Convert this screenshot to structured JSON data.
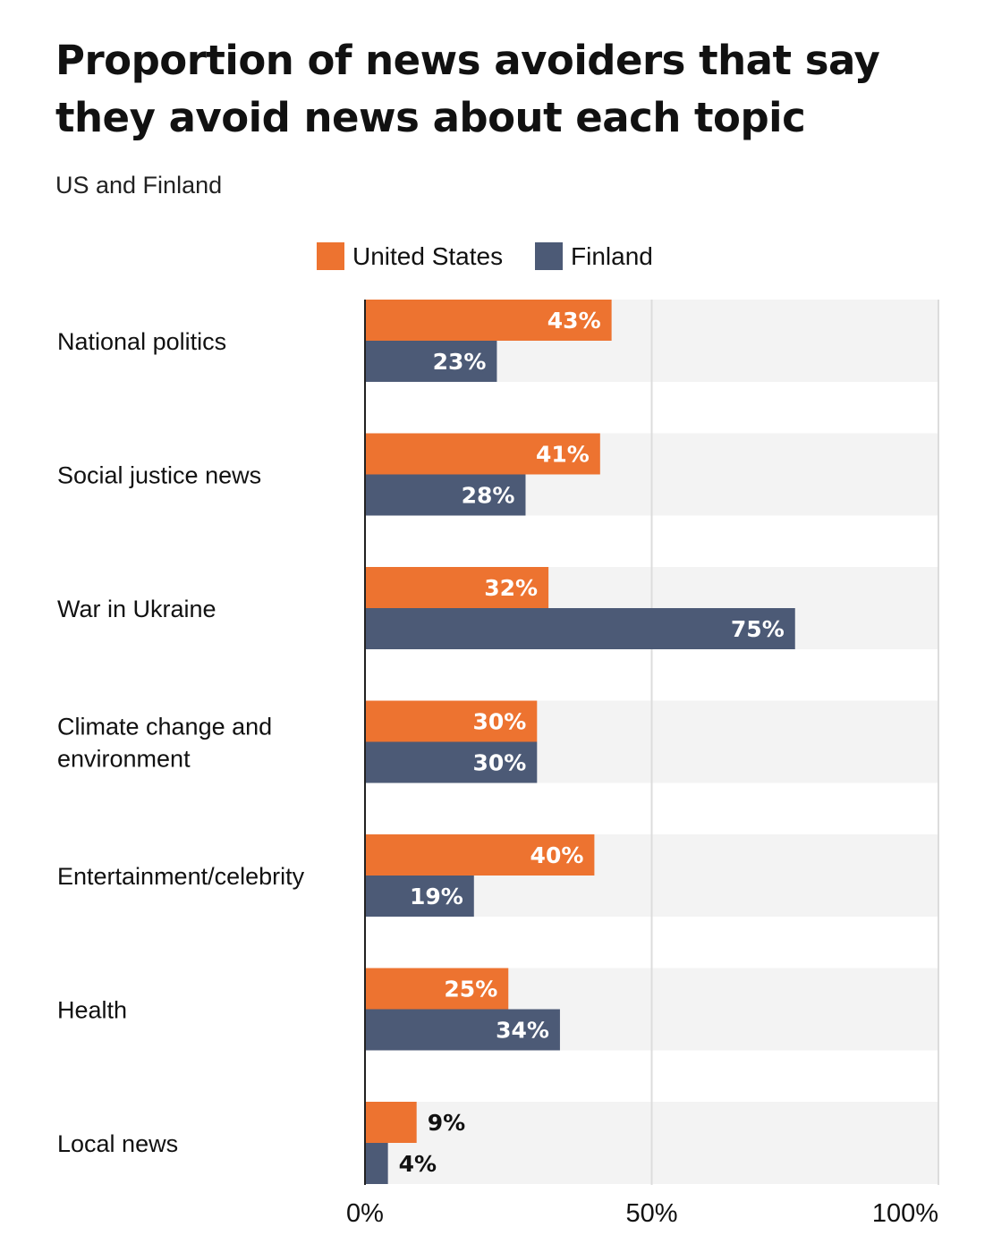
{
  "header": {
    "title": "Proportion of news avoiders that say they avoid news about each topic",
    "subtitle": "US and Finland"
  },
  "colors": {
    "united_states": "#ED7330",
    "finland": "#4C5A76",
    "row_band": "#F3F3F3",
    "gridline": "#DCDCDC",
    "axis": "#222222"
  },
  "chart_data": {
    "type": "bar",
    "orientation": "horizontal",
    "title": "Proportion of news avoiders that say they avoid news about each topic",
    "subtitle": "US and Finland",
    "categories": [
      "National politics",
      "Social justice news",
      "War in Ukraine",
      "Climate change and environment",
      "Entertainment/celebrity",
      "Health",
      "Local news"
    ],
    "category_lines": [
      [
        "National politics"
      ],
      [
        "Social justice news"
      ],
      [
        "War in Ukraine"
      ],
      [
        "Climate change and",
        "environment"
      ],
      [
        "Entertainment/celebrity"
      ],
      [
        "Health"
      ],
      [
        "Local news"
      ]
    ],
    "series": [
      {
        "name": "United States",
        "color": "#ED7330",
        "values": [
          43,
          41,
          32,
          30,
          40,
          25,
          9
        ],
        "labels": [
          "43%",
          "41%",
          "32%",
          "30%",
          "40%",
          "25%",
          "9%"
        ]
      },
      {
        "name": "Finland",
        "color": "#4C5A76",
        "values": [
          23,
          28,
          75,
          30,
          19,
          34,
          4
        ],
        "labels": [
          "23%",
          "28%",
          "75%",
          "30%",
          "19%",
          "34%",
          "4%"
        ]
      }
    ],
    "xlim": [
      0,
      100
    ],
    "xticks": [
      0,
      50,
      100
    ],
    "xtick_labels": [
      "0%",
      "50%",
      "100%"
    ],
    "xlabel": "",
    "ylabel": "",
    "grid": true,
    "legend_position": "top-center"
  }
}
